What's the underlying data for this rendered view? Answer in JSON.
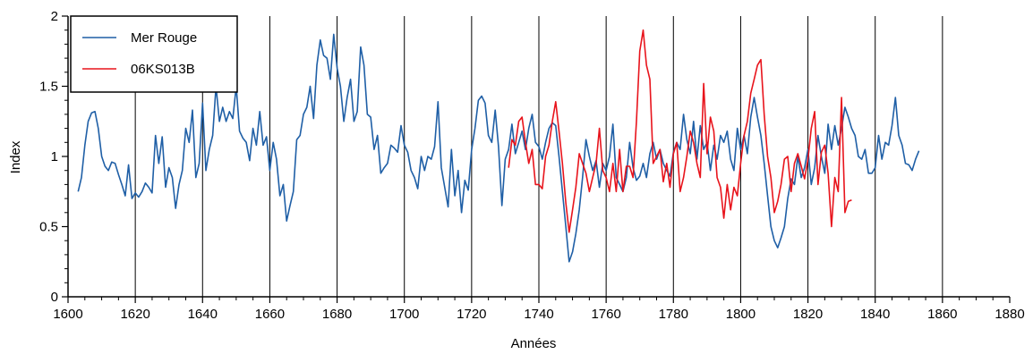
{
  "chart_data": {
    "type": "line",
    "xlabel": "Années",
    "ylabel": "Index",
    "xlim": [
      1600,
      1880
    ],
    "ylim": [
      0,
      2
    ],
    "x_ticks": [
      1600,
      1620,
      1640,
      1660,
      1680,
      1700,
      1720,
      1740,
      1760,
      1780,
      1800,
      1820,
      1840,
      1860,
      1880
    ],
    "y_ticks": [
      0,
      0.5,
      1,
      1.5,
      2
    ],
    "y_tick_labels": [
      "0",
      "0.5",
      "1",
      "1.5",
      "2"
    ],
    "vertical_gridlines": [
      1620,
      1640,
      1660,
      1680,
      1700,
      1720,
      1740,
      1760,
      1780,
      1800,
      1820,
      1840,
      1860
    ],
    "legend_position": "top-left",
    "series": [
      {
        "name": "Mer Rouge",
        "color": "#1f5fa6",
        "x": [
          1603,
          1604,
          1605,
          1606,
          1607,
          1608,
          1609,
          1610,
          1611,
          1612,
          1613,
          1614,
          1615,
          1616,
          1617,
          1618,
          1619,
          1620,
          1621,
          1622,
          1623,
          1624,
          1625,
          1626,
          1627,
          1628,
          1629,
          1630,
          1631,
          1632,
          1633,
          1634,
          1635,
          1636,
          1637,
          1638,
          1639,
          1640,
          1641,
          1642,
          1643,
          1644,
          1645,
          1646,
          1647,
          1648,
          1649,
          1650,
          1651,
          1652,
          1653,
          1654,
          1655,
          1656,
          1657,
          1658,
          1659,
          1660,
          1661,
          1662,
          1663,
          1664,
          1665,
          1666,
          1667,
          1668,
          1669,
          1670,
          1671,
          1672,
          1673,
          1674,
          1675,
          1676,
          1677,
          1678,
          1679,
          1680,
          1681,
          1682,
          1683,
          1684,
          1685,
          1686,
          1687,
          1688,
          1689,
          1690,
          1691,
          1692,
          1693,
          1694,
          1695,
          1696,
          1697,
          1698,
          1699,
          1700,
          1701,
          1702,
          1703,
          1704,
          1705,
          1706,
          1707,
          1708,
          1709,
          1710,
          1711,
          1712,
          1713,
          1714,
          1715,
          1716,
          1717,
          1718,
          1719,
          1720,
          1721,
          1722,
          1723,
          1724,
          1725,
          1726,
          1727,
          1728,
          1729,
          1730,
          1731,
          1732,
          1733,
          1734,
          1735,
          1736,
          1737,
          1738,
          1739,
          1740,
          1741,
          1742,
          1743,
          1744,
          1745,
          1746,
          1747,
          1748,
          1749,
          1750,
          1751,
          1752,
          1753,
          1754,
          1755,
          1756,
          1757,
          1758,
          1759,
          1760,
          1761,
          1762,
          1763,
          1764,
          1765,
          1766,
          1767,
          1768,
          1769,
          1770,
          1771,
          1772,
          1773,
          1774,
          1775,
          1776,
          1777,
          1778,
          1779,
          1780,
          1781,
          1782,
          1783,
          1784,
          1785,
          1786,
          1787,
          1788,
          1789,
          1790,
          1791,
          1792,
          1793,
          1794,
          1795,
          1796,
          1797,
          1798,
          1799,
          1800,
          1801,
          1802,
          1803,
          1804,
          1805,
          1806,
          1807,
          1808,
          1809,
          1810,
          1811,
          1812,
          1813,
          1814,
          1815,
          1816,
          1817,
          1818,
          1819,
          1820,
          1821,
          1822,
          1823,
          1824,
          1825,
          1826,
          1827,
          1828,
          1829,
          1830,
          1831,
          1832,
          1833,
          1834,
          1835,
          1836,
          1837,
          1838,
          1839,
          1840,
          1841,
          1842,
          1843,
          1844,
          1845,
          1846,
          1847,
          1848,
          1849,
          1850,
          1851,
          1852,
          1853
        ],
        "y": [
          0.75,
          0.85,
          1.08,
          1.25,
          1.31,
          1.32,
          1.2,
          1.0,
          0.93,
          0.9,
          0.96,
          0.95,
          0.87,
          0.8,
          0.72,
          0.94,
          0.7,
          0.74,
          0.71,
          0.75,
          0.81,
          0.78,
          0.74,
          1.15,
          0.95,
          1.14,
          0.78,
          0.92,
          0.85,
          0.63,
          0.8,
          0.9,
          1.2,
          1.1,
          1.33,
          0.85,
          0.95,
          1.38,
          0.9,
          1.05,
          1.15,
          1.5,
          1.25,
          1.35,
          1.25,
          1.32,
          1.27,
          1.5,
          1.18,
          1.13,
          1.1,
          0.97,
          1.2,
          1.08,
          1.32,
          1.08,
          1.14,
          0.9,
          1.1,
          0.98,
          0.72,
          0.8,
          0.54,
          0.65,
          0.75,
          1.12,
          1.15,
          1.3,
          1.35,
          1.5,
          1.27,
          1.65,
          1.83,
          1.72,
          1.7,
          1.55,
          1.87,
          1.63,
          1.5,
          1.25,
          1.42,
          1.55,
          1.25,
          1.32,
          1.78,
          1.65,
          1.3,
          1.28,
          1.05,
          1.15,
          0.88,
          0.92,
          0.95,
          1.08,
          1.06,
          1.03,
          1.22,
          1.08,
          1.03,
          0.9,
          0.85,
          0.77,
          1.0,
          0.9,
          1.0,
          0.98,
          1.07,
          1.39,
          0.92,
          0.78,
          0.64,
          1.05,
          0.72,
          0.9,
          0.6,
          0.83,
          0.76,
          1.05,
          1.2,
          1.4,
          1.43,
          1.38,
          1.15,
          1.1,
          1.33,
          1.07,
          0.65,
          0.98,
          1.05,
          1.23,
          1.02,
          1.1,
          1.18,
          1.05,
          1.2,
          1.3,
          1.1,
          1.07,
          0.98,
          1.1,
          1.2,
          1.24,
          1.22,
          1.0,
          0.75,
          0.5,
          0.25,
          0.32,
          0.45,
          0.62,
          0.85,
          1.12,
          1.0,
          0.9,
          0.97,
          0.78,
          0.95,
          0.9,
          1.0,
          1.23,
          0.85,
          0.8,
          0.75,
          0.85,
          1.1,
          0.92,
          0.83,
          0.86,
          0.95,
          0.85,
          1.02,
          1.1,
          0.98,
          1.05,
          0.95,
          0.9,
          0.86,
          1.03,
          1.1,
          1.05,
          1.3,
          1.12,
          1.02,
          1.25,
          0.98,
          1.22,
          1.05,
          1.1,
          0.9,
          1.08,
          0.98,
          1.15,
          1.1,
          1.18,
          0.98,
          0.9,
          1.2,
          1.05,
          1.15,
          1.02,
          1.28,
          1.42,
          1.28,
          1.15,
          0.95,
          0.72,
          0.5,
          0.4,
          0.35,
          0.42,
          0.5,
          0.7,
          0.84,
          0.8,
          1.0,
          0.85,
          0.92,
          1.05,
          0.8,
          0.92,
          1.15,
          1.0,
          0.88,
          1.23,
          1.05,
          1.22,
          1.08,
          1.2,
          1.35,
          1.28,
          1.2,
          1.15,
          1.0,
          0.98,
          1.05,
          0.88,
          0.88,
          0.92,
          1.15,
          0.98,
          1.1,
          1.08,
          1.22,
          1.42,
          1.15,
          1.08,
          0.95,
          0.94,
          0.9,
          0.98,
          1.04
        ]
      },
      {
        "name": "06KS013B",
        "color": "#e8141c",
        "x": [
          1731,
          1732,
          1733,
          1734,
          1735,
          1736,
          1737,
          1738,
          1739,
          1740,
          1741,
          1742,
          1743,
          1744,
          1745,
          1746,
          1747,
          1748,
          1749,
          1750,
          1751,
          1752,
          1753,
          1754,
          1755,
          1756,
          1757,
          1758,
          1759,
          1760,
          1761,
          1762,
          1763,
          1764,
          1765,
          1766,
          1767,
          1768,
          1769,
          1770,
          1771,
          1772,
          1773,
          1774,
          1775,
          1776,
          1777,
          1778,
          1779,
          1780,
          1781,
          1782,
          1783,
          1784,
          1785,
          1786,
          1787,
          1788,
          1789,
          1790,
          1791,
          1792,
          1793,
          1794,
          1795,
          1796,
          1797,
          1798,
          1799,
          1800,
          1801,
          1802,
          1803,
          1804,
          1805,
          1806,
          1807,
          1808,
          1809,
          1810,
          1811,
          1812,
          1813,
          1814,
          1815,
          1816,
          1817,
          1818,
          1819,
          1820,
          1821,
          1822,
          1823,
          1824,
          1825,
          1826,
          1827,
          1828,
          1829,
          1830,
          1831,
          1832,
          1833
        ],
        "y": [
          0.92,
          1.12,
          1.08,
          1.25,
          1.28,
          1.1,
          0.95,
          1.05,
          0.8,
          0.8,
          0.77,
          1.0,
          1.08,
          1.25,
          1.39,
          1.18,
          0.95,
          0.67,
          0.46,
          0.62,
          0.78,
          1.02,
          0.95,
          0.88,
          0.75,
          0.85,
          0.95,
          1.2,
          0.9,
          0.85,
          0.75,
          0.95,
          0.75,
          1.05,
          0.75,
          0.93,
          0.93,
          0.85,
          1.25,
          1.75,
          1.9,
          1.65,
          1.55,
          0.95,
          1.0,
          1.05,
          0.82,
          0.95,
          0.78,
          1.02,
          1.1,
          0.75,
          0.85,
          1.0,
          1.18,
          1.1,
          0.95,
          0.85,
          1.52,
          1.02,
          1.28,
          1.18,
          0.85,
          0.78,
          0.56,
          0.8,
          0.62,
          0.78,
          0.72,
          0.95,
          1.15,
          1.25,
          1.45,
          1.55,
          1.65,
          1.69,
          1.3,
          1.0,
          0.85,
          0.6,
          0.68,
          0.8,
          0.98,
          1.0,
          0.75,
          0.95,
          1.02,
          0.93,
          0.84,
          0.98,
          1.2,
          1.32,
          0.8,
          1.03,
          1.08,
          0.88,
          0.5,
          0.85,
          0.75,
          1.42,
          0.6,
          0.68,
          0.69
        ]
      }
    ]
  }
}
